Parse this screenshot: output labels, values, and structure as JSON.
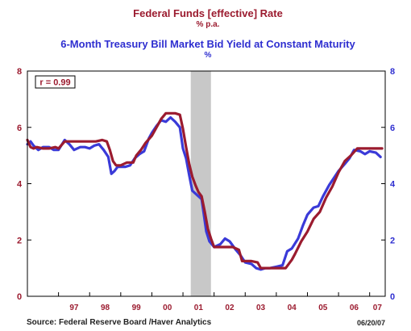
{
  "chart_data": {
    "type": "line",
    "title": "Federal Funds [effective] Rate",
    "title_unit": "% p.a.",
    "subtitle": "6-Month Treasury Bill Market Bid Yield at Constant Maturity",
    "subtitle_unit": "%",
    "y_left_range": [
      0,
      8
    ],
    "y_right_range": [
      0,
      8
    ],
    "y_ticks": [
      "0",
      "2",
      "4",
      "6",
      "8"
    ],
    "x_range": [
      1996.0,
      2007.5
    ],
    "x_tick_labels": [
      "97",
      "98",
      "99",
      "00",
      "01",
      "02",
      "03",
      "04",
      "05",
      "06",
      "07"
    ],
    "annotation": "r = 0.99",
    "recession_shading": [
      2001.25,
      2001.9
    ],
    "source": "Source:  Federal Reserve Board /Haver Analytics",
    "date_stamp": "06/20/07",
    "colors": {
      "fed_funds": "#9b1b2f",
      "tbill": "#3a3ad8",
      "recession": "#c8c8c8"
    },
    "series": [
      {
        "name": "Federal Funds [effective] Rate",
        "color": "#9b1b2f",
        "x": [
          1996.0,
          1996.1,
          1996.2,
          1996.3,
          1996.5,
          1996.7,
          1996.9,
          1997.0,
          1997.2,
          1997.4,
          1997.6,
          1997.8,
          1998.0,
          1998.2,
          1998.4,
          1998.55,
          1998.65,
          1998.75,
          1998.85,
          1999.0,
          1999.2,
          1999.4,
          1999.5,
          1999.65,
          1999.8,
          2000.0,
          2000.15,
          2000.3,
          2000.45,
          2000.6,
          2000.75,
          2000.9,
          2001.0,
          2001.1,
          2001.2,
          2001.3,
          2001.4,
          2001.5,
          2001.6,
          2001.7,
          2001.8,
          2001.9,
          2002.0,
          2002.2,
          2002.4,
          2002.6,
          2002.8,
          2002.9,
          2003.0,
          2003.2,
          2003.4,
          2003.5,
          2003.7,
          2004.0,
          2004.3,
          2004.5,
          2004.6,
          2004.8,
          2005.0,
          2005.2,
          2005.4,
          2005.6,
          2005.8,
          2006.0,
          2006.2,
          2006.4,
          2006.6,
          2006.8,
          2007.0,
          2007.2,
          2007.4
        ],
        "values": [
          5.55,
          5.3,
          5.25,
          5.3,
          5.25,
          5.25,
          5.3,
          5.25,
          5.5,
          5.5,
          5.5,
          5.5,
          5.5,
          5.5,
          5.55,
          5.5,
          5.2,
          4.8,
          4.65,
          4.65,
          4.75,
          4.75,
          5.0,
          5.2,
          5.45,
          5.7,
          6.0,
          6.3,
          6.5,
          6.5,
          6.5,
          6.45,
          5.95,
          5.3,
          4.7,
          4.25,
          3.95,
          3.7,
          3.55,
          3.0,
          2.4,
          2.05,
          1.75,
          1.75,
          1.75,
          1.75,
          1.65,
          1.25,
          1.25,
          1.25,
          1.2,
          1.0,
          1.0,
          1.0,
          1.0,
          1.3,
          1.5,
          1.95,
          2.3,
          2.75,
          3.0,
          3.5,
          3.9,
          4.4,
          4.8,
          5.0,
          5.25,
          5.25,
          5.25,
          5.25,
          5.25
        ]
      },
      {
        "name": "6-Month Treasury Bill Market Bid Yield at Constant Maturity",
        "color": "#3a3ad8",
        "x": [
          1996.0,
          1996.1,
          1996.2,
          1996.35,
          1996.5,
          1996.7,
          1996.85,
          1997.0,
          1997.2,
          1997.35,
          1997.5,
          1997.7,
          1997.85,
          1998.0,
          1998.15,
          1998.3,
          1998.45,
          1998.6,
          1998.7,
          1998.8,
          1998.9,
          1999.0,
          1999.15,
          1999.3,
          1999.45,
          1999.6,
          1999.75,
          1999.9,
          2000.0,
          2000.15,
          2000.3,
          2000.45,
          2000.6,
          2000.75,
          2000.9,
          2001.0,
          2001.1,
          2001.2,
          2001.3,
          2001.45,
          2001.6,
          2001.75,
          2001.85,
          2002.0,
          2002.2,
          2002.35,
          2002.5,
          2002.7,
          2002.85,
          2003.0,
          2003.2,
          2003.35,
          2003.5,
          2003.65,
          2003.8,
          2004.0,
          2004.2,
          2004.35,
          2004.5,
          2004.7,
          2004.85,
          2005.0,
          2005.2,
          2005.35,
          2005.5,
          2005.7,
          2005.85,
          2006.0,
          2006.2,
          2006.35,
          2006.5,
          2006.7,
          2006.85,
          2007.0,
          2007.2,
          2007.35
        ],
        "values": [
          5.4,
          5.5,
          5.35,
          5.2,
          5.3,
          5.3,
          5.2,
          5.2,
          5.55,
          5.4,
          5.2,
          5.3,
          5.3,
          5.25,
          5.35,
          5.4,
          5.2,
          4.95,
          4.35,
          4.45,
          4.6,
          4.6,
          4.6,
          4.65,
          4.9,
          5.05,
          5.15,
          5.6,
          5.8,
          6.05,
          6.25,
          6.2,
          6.35,
          6.2,
          6.0,
          5.25,
          4.9,
          4.3,
          3.75,
          3.6,
          3.45,
          2.3,
          1.95,
          1.75,
          1.85,
          2.05,
          1.95,
          1.65,
          1.45,
          1.2,
          1.15,
          1.0,
          0.95,
          1.0,
          1.0,
          1.05,
          1.1,
          1.6,
          1.7,
          2.05,
          2.5,
          2.9,
          3.15,
          3.2,
          3.55,
          3.95,
          4.2,
          4.45,
          4.7,
          4.9,
          5.2,
          5.15,
          5.05,
          5.15,
          5.1,
          4.95
        ]
      }
    ]
  }
}
